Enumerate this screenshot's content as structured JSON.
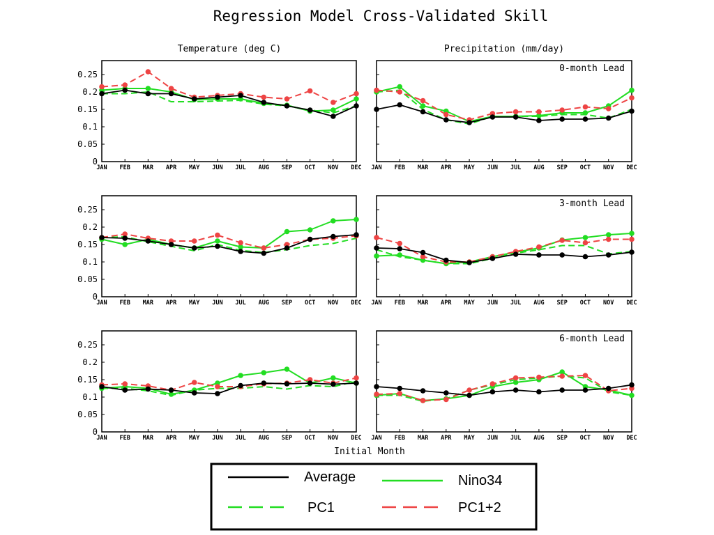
{
  "figure": {
    "title": "Regression Model Cross-Validated Skill",
    "column_titles": [
      "Temperature (deg C)",
      "Precipitation (mm/day)"
    ],
    "x_axis_label": "Initial Month",
    "legend": {
      "average": "Average",
      "nino34": "Nino34",
      "pc1": "PC1",
      "pc12": "PC1+2"
    }
  },
  "colors": {
    "average": "#000000",
    "nino34": "#22dd22",
    "pc1": "#22dd22",
    "pc12": "#ee4444",
    "axis": "#000000",
    "legend_border": "#000000"
  },
  "chart_data": [
    {
      "type": "line",
      "panel": "temperature-0",
      "title": "",
      "lead_label": "",
      "categories": [
        "JAN",
        "FEB",
        "MAR",
        "APR",
        "MAY",
        "JUN",
        "JUL",
        "AUG",
        "SEP",
        "OCT",
        "NOV",
        "DEC"
      ],
      "yticks": [
        "0",
        "0.05",
        "0.1",
        "0.15",
        "0.2",
        "0.25"
      ],
      "ylim": [
        0,
        0.29
      ],
      "series": [
        {
          "name": "Average",
          "key": "average",
          "values": [
            0.195,
            0.205,
            0.195,
            0.195,
            0.18,
            0.185,
            0.19,
            0.17,
            0.16,
            0.148,
            0.13,
            0.16
          ]
        },
        {
          "name": "Nino34",
          "key": "nino34",
          "values": [
            0.205,
            0.21,
            0.21,
            0.2,
            0.178,
            0.18,
            0.18,
            0.167,
            0.162,
            0.145,
            0.148,
            0.18
          ]
        },
        {
          "name": "PC1",
          "key": "pc1",
          "values": [
            0.195,
            0.195,
            0.2,
            0.172,
            0.172,
            0.174,
            0.176,
            0.165,
            0.16,
            0.148,
            0.14,
            0.16
          ]
        },
        {
          "name": "PC1+2",
          "key": "pc12",
          "values": [
            0.215,
            0.22,
            0.258,
            0.21,
            0.185,
            0.19,
            0.195,
            0.185,
            0.18,
            0.203,
            0.17,
            0.195
          ]
        }
      ]
    },
    {
      "type": "line",
      "panel": "precipitation-0",
      "title": "",
      "lead_label": "0-month Lead",
      "categories": [
        "JAN",
        "FEB",
        "MAR",
        "APR",
        "MAY",
        "JUN",
        "JUL",
        "AUG",
        "SEP",
        "OCT",
        "NOV",
        "DEC"
      ],
      "yticks": [],
      "ylim": [
        0,
        0.29
      ],
      "series": [
        {
          "name": "Average",
          "key": "average",
          "values": [
            0.15,
            0.163,
            0.143,
            0.12,
            0.112,
            0.128,
            0.128,
            0.118,
            0.122,
            0.122,
            0.125,
            0.145
          ]
        },
        {
          "name": "Nino34",
          "key": "nino34",
          "values": [
            0.2,
            0.215,
            0.16,
            0.145,
            0.115,
            0.13,
            0.13,
            0.132,
            0.14,
            0.14,
            0.16,
            0.205
          ]
        },
        {
          "name": "PC1",
          "key": "pc1",
          "values": [
            0.2,
            0.205,
            0.15,
            0.12,
            0.108,
            0.13,
            0.13,
            0.13,
            0.135,
            0.135,
            0.125,
            0.15
          ]
        },
        {
          "name": "PC1+2",
          "key": "pc12",
          "values": [
            0.205,
            0.2,
            0.175,
            0.135,
            0.12,
            0.138,
            0.143,
            0.143,
            0.148,
            0.157,
            0.152,
            0.183
          ]
        }
      ]
    },
    {
      "type": "line",
      "panel": "temperature-3",
      "title": "",
      "lead_label": "",
      "categories": [
        "JAN",
        "FEB",
        "MAR",
        "APR",
        "MAY",
        "JUN",
        "JUL",
        "AUG",
        "SEP",
        "OCT",
        "NOV",
        "DEC"
      ],
      "yticks": [
        "0",
        "0.05",
        "0.1",
        "0.15",
        "0.2",
        "0.25"
      ],
      "ylim": [
        0,
        0.29
      ],
      "series": [
        {
          "name": "Average",
          "key": "average",
          "values": [
            0.17,
            0.168,
            0.16,
            0.15,
            0.14,
            0.145,
            0.13,
            0.125,
            0.14,
            0.165,
            0.173,
            0.178
          ]
        },
        {
          "name": "Nino34",
          "key": "nino34",
          "values": [
            0.165,
            0.15,
            0.165,
            0.15,
            0.14,
            0.16,
            0.143,
            0.14,
            0.187,
            0.192,
            0.218,
            0.222
          ]
        },
        {
          "name": "PC1",
          "key": "pc1",
          "values": [
            0.17,
            0.172,
            0.158,
            0.145,
            0.132,
            0.15,
            0.133,
            0.127,
            0.135,
            0.147,
            0.153,
            0.168
          ]
        },
        {
          "name": "PC1+2",
          "key": "pc12",
          "values": [
            0.17,
            0.18,
            0.168,
            0.16,
            0.16,
            0.177,
            0.155,
            0.14,
            0.15,
            0.165,
            0.168,
            0.175
          ]
        }
      ]
    },
    {
      "type": "line",
      "panel": "precipitation-3",
      "title": "",
      "lead_label": "3-month Lead",
      "categories": [
        "JAN",
        "FEB",
        "MAR",
        "APR",
        "MAY",
        "JUN",
        "JUL",
        "AUG",
        "SEP",
        "OCT",
        "NOV",
        "DEC"
      ],
      "yticks": [],
      "ylim": [
        0,
        0.29
      ],
      "series": [
        {
          "name": "Average",
          "key": "average",
          "values": [
            0.14,
            0.138,
            0.127,
            0.105,
            0.098,
            0.11,
            0.122,
            0.12,
            0.12,
            0.115,
            0.12,
            0.128
          ]
        },
        {
          "name": "Nino34",
          "key": "nino34",
          "values": [
            0.117,
            0.12,
            0.105,
            0.095,
            0.1,
            0.115,
            0.128,
            0.14,
            0.163,
            0.17,
            0.178,
            0.182
          ]
        },
        {
          "name": "PC1",
          "key": "pc1",
          "values": [
            0.135,
            0.115,
            0.105,
            0.095,
            0.095,
            0.11,
            0.125,
            0.135,
            0.147,
            0.147,
            0.123,
            0.13
          ]
        },
        {
          "name": "PC1+2",
          "key": "pc12",
          "values": [
            0.17,
            0.153,
            0.115,
            0.1,
            0.1,
            0.115,
            0.13,
            0.143,
            0.162,
            0.155,
            0.165,
            0.165
          ]
        }
      ]
    },
    {
      "type": "line",
      "panel": "temperature-6",
      "title": "",
      "lead_label": "",
      "categories": [
        "JAN",
        "FEB",
        "MAR",
        "APR",
        "MAY",
        "JUN",
        "JUL",
        "AUG",
        "SEP",
        "OCT",
        "NOV",
        "DEC"
      ],
      "yticks": [
        "0",
        "0.05",
        "0.1",
        "0.15",
        "0.2",
        "0.25"
      ],
      "ylim": [
        0,
        0.29
      ],
      "series": [
        {
          "name": "Average",
          "key": "average",
          "values": [
            0.13,
            0.12,
            0.123,
            0.12,
            0.112,
            0.11,
            0.133,
            0.14,
            0.138,
            0.14,
            0.137,
            0.14
          ]
        },
        {
          "name": "Nino34",
          "key": "nino34",
          "values": [
            0.125,
            0.13,
            0.125,
            0.108,
            0.12,
            0.14,
            0.162,
            0.17,
            0.18,
            0.14,
            0.155,
            0.14
          ]
        },
        {
          "name": "PC1",
          "key": "pc1",
          "values": [
            0.125,
            0.125,
            0.118,
            0.105,
            0.12,
            0.125,
            0.125,
            0.13,
            0.123,
            0.133,
            0.13,
            0.145
          ]
        },
        {
          "name": "PC1+2",
          "key": "pc12",
          "values": [
            0.135,
            0.138,
            0.132,
            0.12,
            0.142,
            0.13,
            0.13,
            0.138,
            0.14,
            0.15,
            0.14,
            0.155
          ]
        }
      ]
    },
    {
      "type": "line",
      "panel": "precipitation-6",
      "title": "",
      "lead_label": "6-month Lead",
      "categories": [
        "JAN",
        "FEB",
        "MAR",
        "APR",
        "MAY",
        "JUN",
        "JUL",
        "AUG",
        "SEP",
        "OCT",
        "NOV",
        "DEC"
      ],
      "yticks": [],
      "ylim": [
        0,
        0.29
      ],
      "series": [
        {
          "name": "Average",
          "key": "average",
          "values": [
            0.13,
            0.125,
            0.118,
            0.112,
            0.105,
            0.115,
            0.12,
            0.115,
            0.12,
            0.12,
            0.125,
            0.135
          ]
        },
        {
          "name": "Nino34",
          "key": "nino34",
          "values": [
            0.105,
            0.11,
            0.09,
            0.095,
            0.105,
            0.13,
            0.142,
            0.15,
            0.172,
            0.13,
            0.12,
            0.105
          ]
        },
        {
          "name": "PC1",
          "key": "pc1",
          "values": [
            0.105,
            0.105,
            0.088,
            0.095,
            0.12,
            0.135,
            0.15,
            0.155,
            0.16,
            0.155,
            0.115,
            0.105
          ]
        },
        {
          "name": "PC1+2",
          "key": "pc12",
          "values": [
            0.108,
            0.11,
            0.09,
            0.093,
            0.12,
            0.138,
            0.155,
            0.157,
            0.16,
            0.162,
            0.118,
            0.125
          ]
        }
      ]
    }
  ]
}
